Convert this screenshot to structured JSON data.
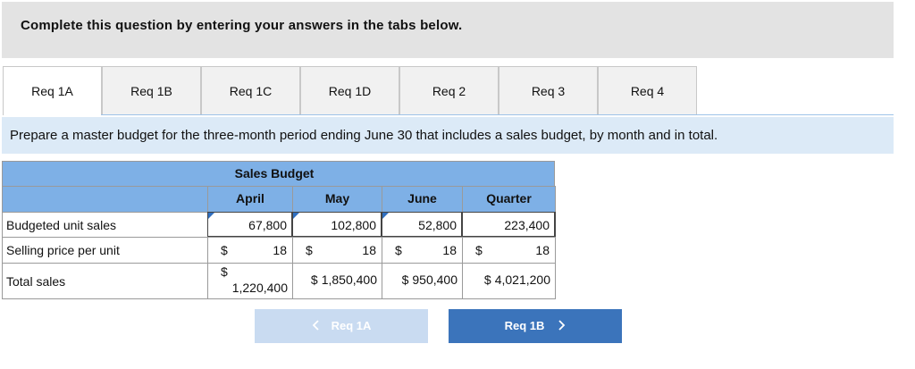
{
  "header": {
    "instruction": "Complete this question by entering your answers in the tabs below."
  },
  "tabs": [
    "Req 1A",
    "Req 1B",
    "Req 1C",
    "Req 1D",
    "Req 2",
    "Req 3",
    "Req 4"
  ],
  "prompt": "Prepare a master budget for the three-month period ending June 30 that includes a sales budget, by month and in total.",
  "table": {
    "title": "Sales Budget",
    "columns": [
      "April",
      "May",
      "June",
      "Quarter"
    ],
    "rows": [
      {
        "label": "Budgeted unit sales",
        "cells": [
          {
            "amount": "67,800"
          },
          {
            "amount": "102,800"
          },
          {
            "amount": "52,800"
          },
          {
            "amount": "223,400"
          }
        ]
      },
      {
        "label": "Selling price per unit",
        "cells": [
          {
            "currency": "$",
            "amount": "18"
          },
          {
            "currency": "$",
            "amount": "18"
          },
          {
            "currency": "$",
            "amount": "18"
          },
          {
            "currency": "$",
            "amount": "18"
          }
        ]
      },
      {
        "label": "Total sales",
        "cells": [
          {
            "currency": "$",
            "amount": "1,220,400"
          },
          {
            "currency": "$",
            "amount": "1,850,400"
          },
          {
            "currency": "$",
            "amount": "950,400"
          },
          {
            "currency": "$",
            "amount": "4,021,200"
          }
        ]
      }
    ]
  },
  "navigation": {
    "previous": "Req 1A",
    "next": "Req 1B"
  }
}
